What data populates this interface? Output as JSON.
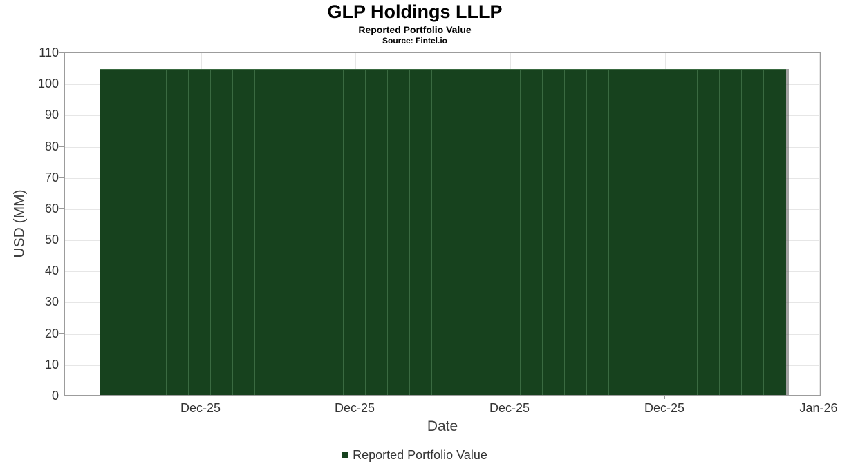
{
  "chart_data": {
    "type": "bar",
    "title": "GLP Holdings LLLP",
    "subtitle": "Reported Portfolio Value",
    "source": "Source: Fintel.io",
    "xlabel": "Date",
    "ylabel": "USD (MM)",
    "ylim": [
      0,
      110
    ],
    "yticks": [
      0,
      10,
      20,
      30,
      40,
      50,
      60,
      70,
      80,
      90,
      100,
      110
    ],
    "x_tick_labels": [
      "Dec-25",
      "Dec-25",
      "Dec-25",
      "Dec-25",
      "Jan-26"
    ],
    "grid": true,
    "legend_position": "bottom",
    "series": [
      {
        "name": "Reported Portfolio Value",
        "values": [
          104.8,
          104.8,
          104.8,
          104.8,
          104.8,
          104.8,
          104.8,
          104.8,
          104.8,
          104.8,
          104.8,
          104.8,
          104.8,
          104.8,
          104.8,
          104.8,
          104.8,
          104.8,
          104.8,
          104.8,
          104.8,
          104.8,
          104.8,
          104.8,
          104.8,
          104.8,
          104.8,
          104.8,
          104.8,
          104.8,
          104.8
        ]
      }
    ]
  },
  "colors": {
    "bar_fill": "#17421e",
    "bar_border": "#3a6a41",
    "gridline": "#e6e6e6",
    "plot_border": "#9c9c9c",
    "tick_mark": "#999999",
    "bar_shadow": "rgba(110,110,110,0.65)",
    "tick_label_text": "#333333",
    "axis_title_text": "#404040",
    "title_text": "#000000"
  }
}
